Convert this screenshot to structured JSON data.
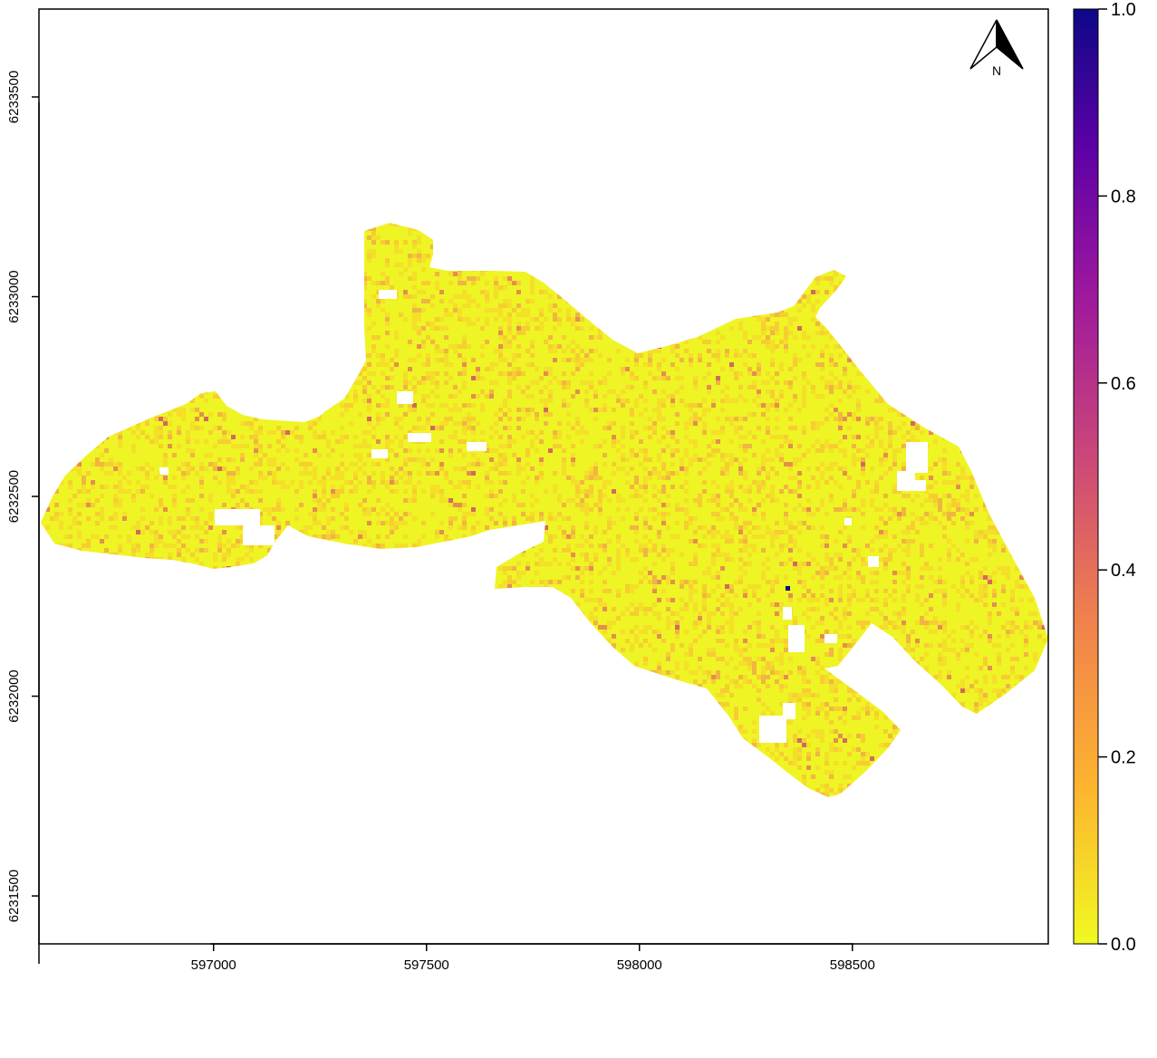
{
  "map": {
    "x_axis": {
      "ticks": [
        {
          "value": 597000,
          "label": "597000"
        },
        {
          "value": 597500,
          "label": "597500"
        },
        {
          "value": 598000,
          "label": "598000"
        },
        {
          "value": 598500,
          "label": "598500"
        }
      ],
      "range": [
        596590,
        598960
      ]
    },
    "y_axis": {
      "ticks": [
        {
          "value": 6231500,
          "label": "6231500"
        },
        {
          "value": 6232000,
          "label": "6232000"
        },
        {
          "value": 6232500,
          "label": "6232500"
        },
        {
          "value": 6233000,
          "label": "6233000"
        },
        {
          "value": 6233500,
          "label": "6233500"
        }
      ],
      "range": [
        6231380,
        6233720
      ]
    },
    "north_arrow": {
      "label": "N"
    },
    "legend": {
      "position": "right",
      "range": [
        0,
        1
      ],
      "ticks": [
        {
          "value": 0.0,
          "label": "0.0"
        },
        {
          "value": 0.2,
          "label": "0.2"
        },
        {
          "value": 0.4,
          "label": "0.4"
        },
        {
          "value": 0.6,
          "label": "0.6"
        },
        {
          "value": 0.8,
          "label": "0.8"
        },
        {
          "value": 1.0,
          "label": "1.0"
        }
      ],
      "colors": [
        "#F0F921",
        "#FDB32F",
        "#F0804E",
        "#CC4778",
        "#9C179E",
        "#5D01A6",
        "#0D0887"
      ]
    },
    "raster": {
      "fill_color": "#EFF424",
      "speckle_colors": [
        "#F5DA2A",
        "#F7C434",
        "#F0A54A",
        "#E0765A",
        "#C7476F"
      ]
    }
  }
}
